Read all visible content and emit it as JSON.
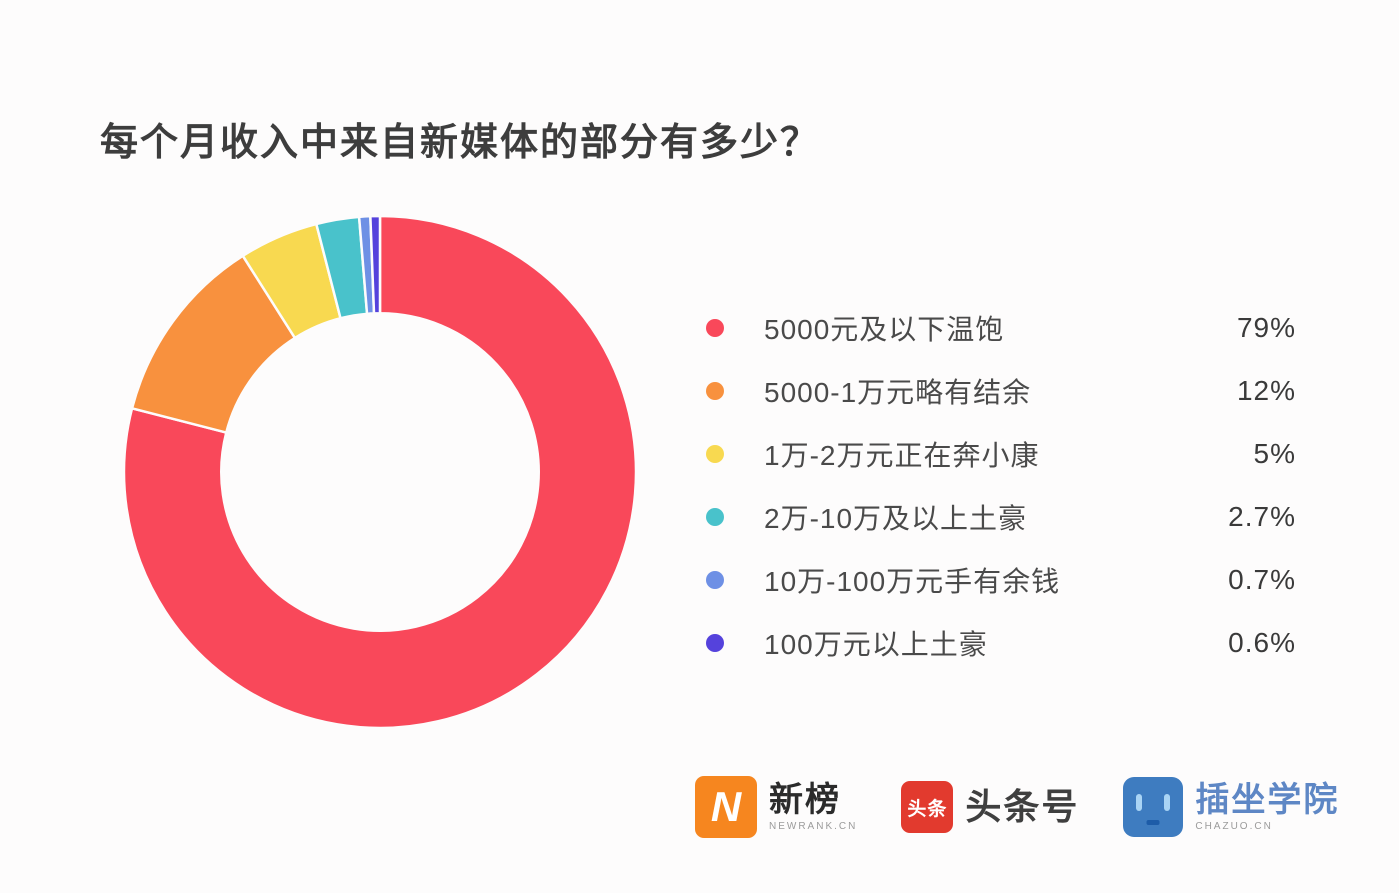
{
  "title": "每个月收入中来自新媒体的部分有多少？",
  "chart_data": {
    "type": "pie",
    "subtype": "donut",
    "title": "每个月收入中来自新媒体的部分有多少？",
    "categories": [
      "5000元及以下温饱",
      "5000-1万元略有结余",
      "1万-2万元正在奔小康",
      "2万-10万及以上土豪",
      "10万-100万元手有余钱",
      "100万元以上土豪"
    ],
    "values": [
      79,
      12,
      5,
      2.7,
      0.7,
      0.6
    ],
    "unit": "%",
    "start_angle_deg": 0,
    "direction": "clockwise",
    "inner_radius_ratio": 0.62,
    "slice_gap_color": "#fdfcfc",
    "legend_position": "right",
    "segments": [
      {
        "label": "5000元及以下温饱",
        "value": 79,
        "display": "79%",
        "color": "#f9485a"
      },
      {
        "label": "5000-1万元略有结余",
        "value": 12,
        "display": "12%",
        "color": "#f8913e"
      },
      {
        "label": "1万-2万元正在奔小康",
        "value": 5,
        "display": "5%",
        "color": "#f8d950"
      },
      {
        "label": "2万-10万及以上土豪",
        "value": 2.7,
        "display": "2.7%",
        "color": "#49c2cb"
      },
      {
        "label": "10万-100万元手有余钱",
        "value": 0.7,
        "display": "0.7%",
        "color": "#6e90e5"
      },
      {
        "label": "100万元以上土豪",
        "value": 0.6,
        "display": "0.6%",
        "color": "#5542dc"
      }
    ]
  },
  "footer": {
    "logos": [
      {
        "name": "newrank",
        "badge_text": "N",
        "title": "新榜",
        "subtitle": "NEWRANK.CN",
        "brand_color": "#f6861f"
      },
      {
        "name": "toutiao",
        "badge_text": "头条",
        "title": "头条号",
        "brand_color": "#e23a2e"
      },
      {
        "name": "chazuo",
        "badge_text": "",
        "title": "插坐学院",
        "subtitle": "CHAZUO.CN",
        "brand_color": "#3e7cc0"
      }
    ]
  }
}
